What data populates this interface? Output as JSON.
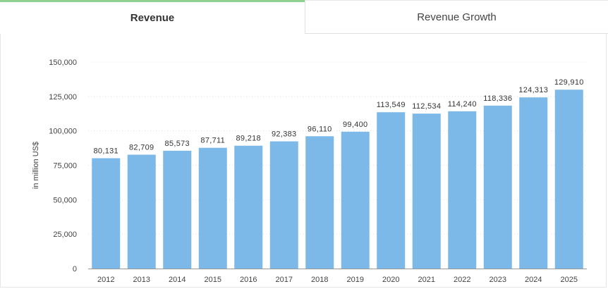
{
  "tabs": [
    {
      "label": "Revenue",
      "active": true
    },
    {
      "label": "Revenue Growth",
      "active": false
    }
  ],
  "colors": {
    "bar": "#7cb9e8",
    "active_tab_accent": "#8fd18f",
    "grid": "#e0e0e0"
  },
  "chart_data": {
    "type": "bar",
    "title": "",
    "xlabel": "",
    "ylabel": "in million US$",
    "ylim": [
      0,
      150000
    ],
    "yticks": [
      "0",
      "25,000",
      "50,000",
      "75,000",
      "100,000",
      "125,000",
      "150,000"
    ],
    "ytick_values": [
      0,
      25000,
      50000,
      75000,
      100000,
      125000,
      150000
    ],
    "grid": true,
    "categories": [
      "2012",
      "2013",
      "2014",
      "2015",
      "2016",
      "2017",
      "2018",
      "2019",
      "2020",
      "2021",
      "2022",
      "2023",
      "2024",
      "2025"
    ],
    "values": [
      80131,
      82709,
      85573,
      87711,
      89218,
      92383,
      96110,
      99400,
      113549,
      112534,
      114240,
      118336,
      124313,
      129910
    ],
    "data_labels": [
      "80,131",
      "82,709",
      "85,573",
      "87,711",
      "89,218",
      "92,383",
      "96,110",
      "99,400",
      "113,549",
      "112,534",
      "114,240",
      "118,336",
      "124,313",
      "129,910"
    ]
  }
}
